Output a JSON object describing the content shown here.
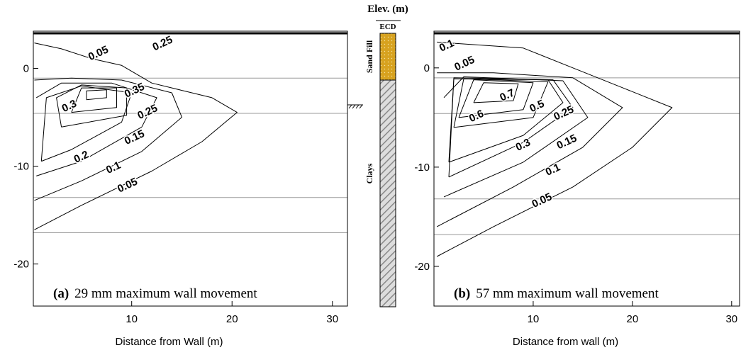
{
  "chart_data": [
    {
      "type": "contour",
      "panel": "(a)",
      "caption": "29 mm maximum wall movement",
      "x_label": "Distance from Wall (m)",
      "xlim": [
        0.2,
        31.5
      ],
      "ylim": [
        -24.3,
        3.8
      ],
      "xticks": [
        10,
        20,
        30
      ],
      "yticks": [
        -20,
        -10,
        0
      ],
      "reference_lines": [
        -1,
        -4.6,
        -13.2,
        -16.8
      ],
      "contours": [
        {
          "level": 0.05,
          "label_at": [
            [
              6.7,
              1.5
            ],
            [
              9.6,
              -12.0
            ]
          ],
          "points": [
            [
              0.3,
              -16.5
            ],
            [
              5,
              -14
            ],
            [
              12,
              -10.5
            ],
            [
              17,
              -7.5
            ],
            [
              20.5,
              -4.5
            ],
            [
              18,
              -3
            ],
            [
              12,
              -1.5
            ],
            [
              9,
              0.3
            ],
            [
              6,
              1
            ],
            [
              3,
              2
            ],
            [
              0.3,
              2.6
            ]
          ]
        },
        {
          "level": 0.1,
          "label_at": [
            [
              8.2,
              -10.2
            ]
          ],
          "points": [
            [
              0.3,
              -13.5
            ],
            [
              5,
              -11.5
            ],
            [
              11,
              -8.5
            ],
            [
              15,
              -5
            ],
            [
              14,
              -2.5
            ],
            [
              9,
              -1.2
            ],
            [
              4,
              -1
            ],
            [
              0.3,
              -1.2
            ]
          ]
        },
        {
          "level": 0.15,
          "label_at": [
            [
              10.3,
              -7.1
            ]
          ],
          "points": [
            [
              0.5,
              -11
            ],
            [
              5,
              -9.5
            ],
            [
              11,
              -6
            ],
            [
              12.5,
              -3
            ],
            [
              8,
              -1.5
            ],
            [
              3,
              -1.5
            ],
            [
              0.5,
              -3
            ]
          ]
        },
        {
          "level": 0.2,
          "label_at": [
            [
              5,
              -9.1
            ]
          ],
          "points": [
            [
              1,
              -9.5
            ],
            [
              4,
              -8.3
            ],
            [
              9,
              -5.5
            ],
            [
              10,
              -2.5
            ],
            [
              5,
              -1.8
            ],
            [
              1.5,
              -3
            ],
            [
              1,
              -9.5
            ]
          ]
        },
        {
          "level": 0.25,
          "label_at": [
            [
              11.6,
              -4.5
            ],
            [
              13.1,
              2.5
            ]
          ],
          "points": [
            [
              3,
              -6
            ],
            [
              9.5,
              -4.8
            ],
            [
              9.5,
              -2
            ],
            [
              5,
              -1.7
            ],
            [
              2.5,
              -3
            ],
            [
              3,
              -6
            ]
          ]
        },
        {
          "level": 0.3,
          "label_at": [
            [
              3.8,
              -3.9
            ]
          ],
          "points": [
            [
              4,
              -4.5
            ],
            [
              8.5,
              -4
            ],
            [
              8.5,
              -2
            ],
            [
              5,
              -2
            ],
            [
              4,
              -4.5
            ]
          ]
        },
        {
          "level": 0.35,
          "label_at": [
            [
              10.3,
              -2.3
            ]
          ],
          "points": [
            [
              5.5,
              -3.2
            ],
            [
              7.5,
              -3
            ],
            [
              7.5,
              -2.2
            ],
            [
              5.5,
              -2.3
            ],
            [
              5.5,
              -3.2
            ]
          ]
        }
      ]
    },
    {
      "type": "contour",
      "panel": "(b)",
      "caption": "57 mm maximum wall movement",
      "x_label": "Distance from wall (m)",
      "xlim": [
        0,
        30.8
      ],
      "ylim": [
        -24,
        3.7
      ],
      "xticks": [
        10,
        20,
        30
      ],
      "yticks": [
        -20,
        -10,
        0
      ],
      "reference_lines": [
        -1,
        -4.6,
        -13.2,
        -16.8
      ],
      "contours": [
        {
          "level": 0.1,
          "label_at": [
            [
              1.3,
              2.2
            ],
            [
              12,
              -10.3
            ]
          ],
          "points": [
            [
              0.3,
              -16
            ],
            [
              8,
              -12
            ],
            [
              15,
              -8
            ],
            [
              19,
              -4
            ],
            [
              14,
              -1
            ],
            [
              6,
              -0.5
            ],
            [
              0.3,
              -0.5
            ]
          ]
        },
        {
          "level": 0.05,
          "label_at": [
            [
              3.1,
              0.4
            ],
            [
              10.9,
              -13.4
            ]
          ],
          "points": [
            [
              0.3,
              -19
            ],
            [
              6,
              -16
            ],
            [
              14,
              -12
            ],
            [
              20,
              -8
            ],
            [
              24,
              -4
            ],
            [
              19,
              -2
            ],
            [
              14,
              0
            ],
            [
              9,
              2
            ],
            [
              0.3,
              2.6
            ]
          ]
        },
        {
          "level": 0.7,
          "label_at": [
            [
              7.4,
              -2.8
            ]
          ],
          "points": [
            [
              4,
              -3.5
            ],
            [
              8,
              -3.3
            ],
            [
              8.5,
              -1.6
            ],
            [
              5,
              -1.5
            ],
            [
              4,
              -3.5
            ]
          ]
        },
        {
          "level": 0.6,
          "label_at": [
            [
              4.3,
              -4.9
            ]
          ],
          "points": [
            [
              2.5,
              -5
            ],
            [
              9,
              -4.2
            ],
            [
              10,
              -1.5
            ],
            [
              4,
              -1.2
            ],
            [
              2.5,
              -5
            ]
          ]
        },
        {
          "level": 0.5,
          "label_at": [
            [
              10.4,
              -3.9
            ]
          ],
          "points": [
            [
              2,
              -6
            ],
            [
              10,
              -5
            ],
            [
              11.5,
              -1.4
            ],
            [
              3,
              -1.1
            ],
            [
              2,
              -6
            ]
          ]
        },
        {
          "level": 0.3,
          "label_at": [
            [
              9,
              -7.8
            ]
          ],
          "points": [
            [
              1.5,
              -9.5
            ],
            [
              9,
              -6.8
            ],
            [
              13,
              -3.5
            ],
            [
              11.5,
              -1.2
            ],
            [
              2,
              -1.1
            ],
            [
              1.5,
              -9.5
            ]
          ]
        },
        {
          "level": 0.25,
          "label_at": [
            [
              13.1,
              -4.6
            ]
          ],
          "points": [
            [
              1.5,
              -11
            ],
            [
              9,
              -7.5
            ],
            [
              14,
              -4
            ],
            [
              12,
              -1.2
            ],
            [
              2,
              -1.0
            ],
            [
              1.5,
              -11
            ]
          ]
        },
        {
          "level": 0.15,
          "label_at": [
            [
              13.4,
              -7.5
            ]
          ],
          "points": [
            [
              1,
              -13
            ],
            [
              9,
              -9.5
            ],
            [
              15.5,
              -5
            ],
            [
              13,
              -1.3
            ],
            [
              3,
              -0.9
            ],
            [
              1,
              -3
            ]
          ]
        }
      ]
    }
  ],
  "soil_column": {
    "title": "Elev. (m)",
    "header": "ECD",
    "layers": [
      "Sand Fill",
      "Clays"
    ]
  }
}
